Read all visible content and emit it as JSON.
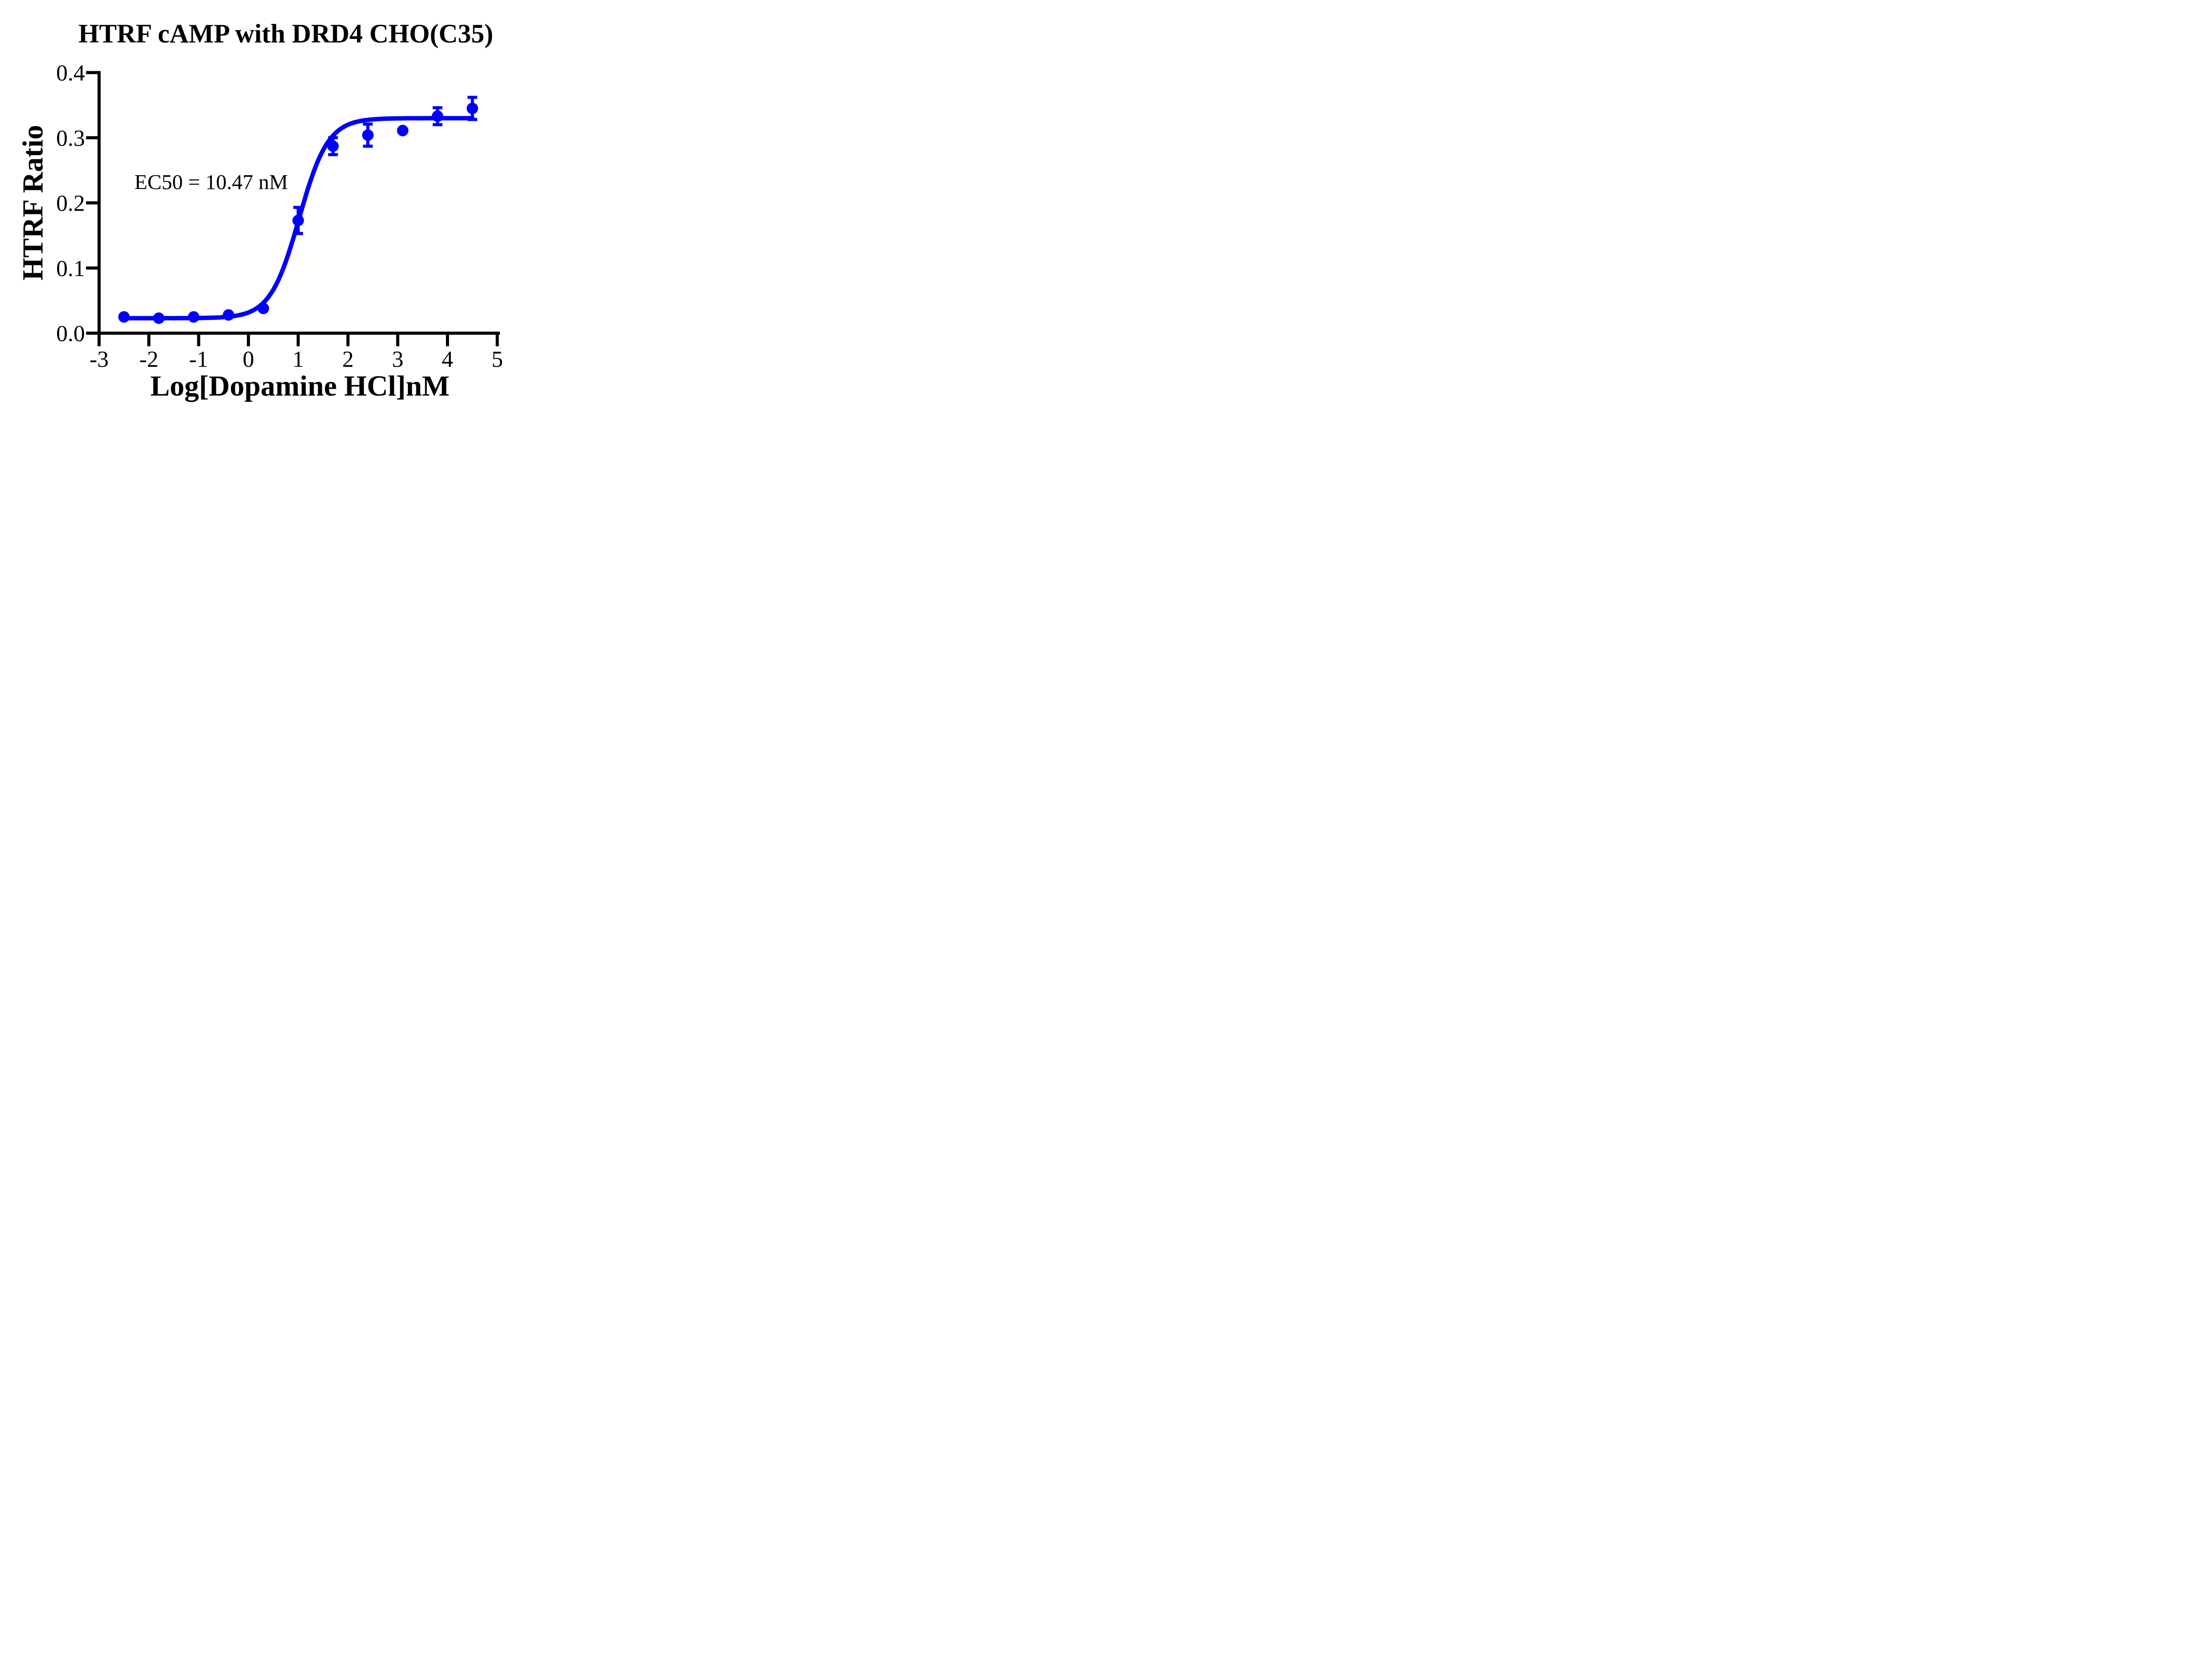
{
  "figure": {
    "background": "#FFFFFF",
    "title": "HTRF cAMP with DRD4 CHO(C35)"
  },
  "colors": {
    "series": "#0000FF",
    "axis": "#000000",
    "text": "#000000"
  },
  "chart_data": {
    "type": "scatter",
    "title": "HTRF cAMP with DRD4 CHO(C35)",
    "xlabel": "Log[Dopamine HCl]nM",
    "ylabel": "HTRF Ratio",
    "xlim": [
      -3,
      5
    ],
    "ylim": [
      0,
      0.4
    ],
    "x_ticks": [
      -3,
      -2,
      -1,
      0,
      1,
      2,
      3,
      4,
      5
    ],
    "x_tick_labels": [
      "-3",
      "-2",
      "-1",
      "0",
      "1",
      "2",
      "3",
      "4",
      "5"
    ],
    "y_ticks": [
      0.0,
      0.1,
      0.2,
      0.3,
      0.4
    ],
    "y_tick_labels": [
      "0.0",
      "0.1",
      "0.2",
      "0.3",
      "0.4"
    ],
    "grid": false,
    "legend": null,
    "annotation": {
      "text": "EC50 = 10.47 nM",
      "x": -2.29,
      "y": 0.221
    },
    "series": [
      {
        "name": "Dopamine HCl",
        "marker": "circle",
        "color": "#0000FF",
        "points": [
          {
            "x": -2.5,
            "y": 0.025,
            "err": null
          },
          {
            "x": -1.8,
            "y": 0.023,
            "err": null
          },
          {
            "x": -1.1,
            "y": 0.025,
            "err": null
          },
          {
            "x": -0.4,
            "y": 0.028,
            "err": null
          },
          {
            "x": 0.3,
            "y": 0.038,
            "err": null
          },
          {
            "x": 1.0,
            "y": 0.173,
            "err": 0.02
          },
          {
            "x": 1.7,
            "y": 0.287,
            "err": 0.013
          },
          {
            "x": 2.4,
            "y": 0.304,
            "err": 0.017
          },
          {
            "x": 3.1,
            "y": 0.311,
            "err": null
          },
          {
            "x": 3.8,
            "y": 0.333,
            "err": 0.013
          },
          {
            "x": 4.5,
            "y": 0.345,
            "err": 0.017
          }
        ]
      }
    ],
    "fit": {
      "model": "4PL-sigmoid",
      "bottom": 0.023,
      "top": 0.33,
      "logEC50": 1.02,
      "hill": 1.5,
      "x_start": -2.5,
      "x_end": 4.5,
      "ec50_nM": 10.47
    }
  }
}
